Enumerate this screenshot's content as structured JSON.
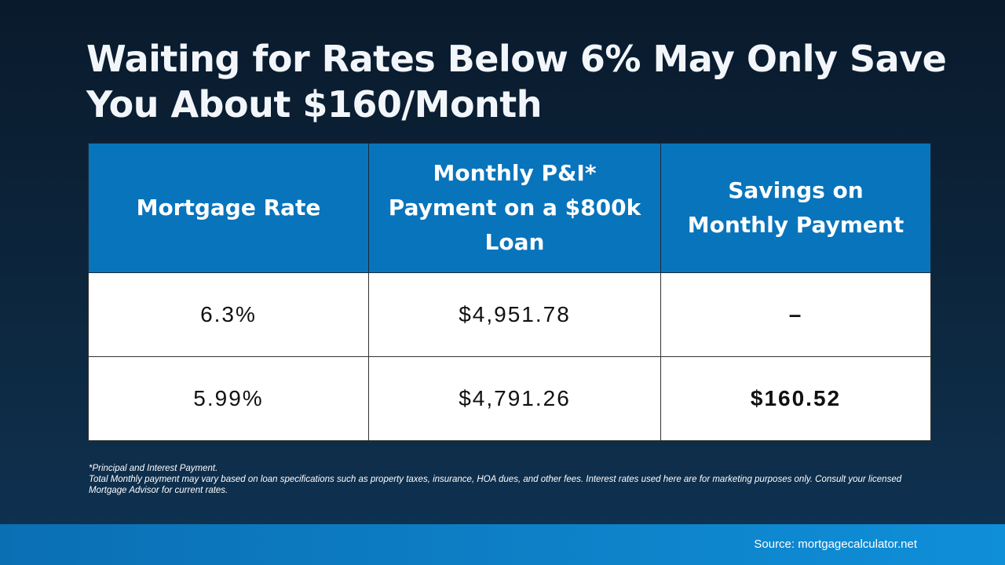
{
  "header": {
    "title": "Waiting for Rates Below 6% May Only Save You About $160/Month"
  },
  "table": {
    "columns": [
      "Mortgage Rate",
      "Monthly P&I* Payment on a $800k Loan",
      "Savings on Monthly Payment"
    ],
    "rows": [
      [
        "6.3%",
        "$4,951.78",
        "–"
      ],
      [
        "5.99%",
        "$4,791.26",
        "$160.52"
      ]
    ]
  },
  "footnote": {
    "line1": "*Principal and Interest Payment.",
    "line2": "Total Monthly payment may vary based on loan specifications such as property taxes, insurance, HOA dues, and other fees. Interest rates used here are for marketing purposes only. Consult your licensed Mortgage Advisor for current rates."
  },
  "footer": {
    "source": "Source: mortgagecalculator.net"
  }
}
